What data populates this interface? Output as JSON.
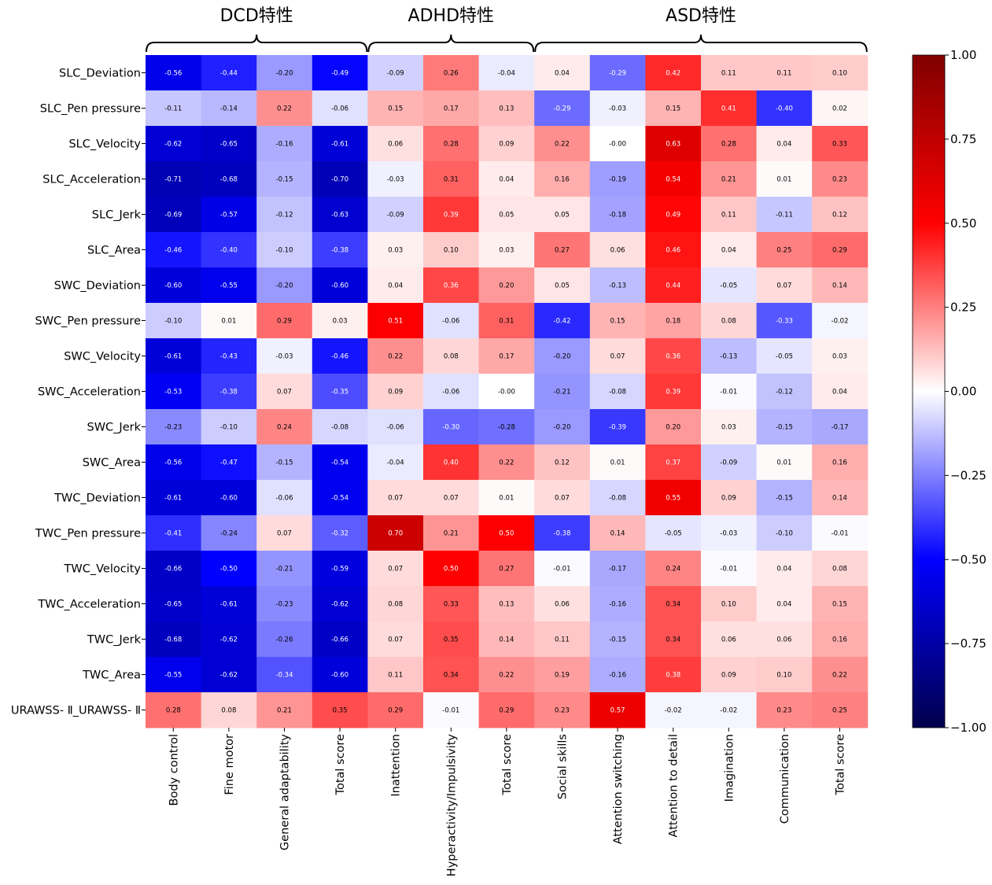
{
  "chart_data": {
    "type": "heatmap",
    "colormap": "seismic",
    "vmin": -1.0,
    "vmax": 1.0,
    "colorbar_ticks": [
      "1.00",
      "0.75",
      "0.50",
      "0.25",
      "0.00",
      "−0.25",
      "−0.50",
      "−0.75",
      "−1.00"
    ],
    "colorbar_tick_values": [
      1.0,
      0.75,
      0.5,
      0.25,
      0.0,
      -0.25,
      -0.5,
      -0.75,
      -1.0
    ],
    "groups": [
      {
        "label": "DCD特性",
        "start": 0,
        "end": 3
      },
      {
        "label": "ADHD特性",
        "start": 4,
        "end": 6
      },
      {
        "label": "ASD特性",
        "start": 7,
        "end": 12
      }
    ],
    "columns": [
      "Body control",
      "Fine motor",
      "General adaptability",
      "Total score",
      "Inattention",
      "Hyperactivity/Impulsivity",
      "Total score",
      "Social skills",
      "Attention switching",
      "Attention to detail",
      "Imagination",
      "Communication",
      "Total score"
    ],
    "rows": [
      "SLC_Deviation",
      "SLC_Pen pressure",
      "SLC_Velocity",
      "SLC_Acceleration",
      "SLC_Jerk",
      "SLC_Area",
      "SWC_Deviation",
      "SWC_Pen pressure",
      "SWC_Velocity",
      "SWC_Acceleration",
      "SWC_Jerk",
      "SWC_Area",
      "TWC_Deviation",
      "TWC_Pen pressure",
      "TWC_Velocity",
      "TWC_Acceleration",
      "TWC_Jerk",
      "TWC_Area",
      "URAWSS- Ⅱ_URAWSS- Ⅱ"
    ],
    "values": [
      [
        "-0.56",
        "-0.44",
        "-0.20",
        "-0.49",
        "-0.09",
        "0.26",
        "-0.04",
        "0.04",
        "-0.29",
        "0.42",
        "0.11",
        "0.11",
        "0.10"
      ],
      [
        "-0.11",
        "-0.14",
        "0.22",
        "-0.06",
        "0.15",
        "0.17",
        "0.13",
        "-0.29",
        "-0.03",
        "0.15",
        "0.41",
        "-0.40",
        "0.02"
      ],
      [
        "-0.62",
        "-0.65",
        "-0.16",
        "-0.61",
        "0.06",
        "0.28",
        "0.09",
        "0.22",
        "-0.00",
        "0.63",
        "0.28",
        "0.04",
        "0.33"
      ],
      [
        "-0.71",
        "-0.68",
        "-0.15",
        "-0.70",
        "-0.03",
        "0.31",
        "0.04",
        "0.16",
        "-0.19",
        "0.54",
        "0.21",
        "0.01",
        "0.23"
      ],
      [
        "-0.69",
        "-0.57",
        "-0.12",
        "-0.63",
        "-0.09",
        "0.39",
        "0.05",
        "0.05",
        "-0.18",
        "0.49",
        "0.11",
        "-0.11",
        "0.12"
      ],
      [
        "-0.46",
        "-0.40",
        "-0.10",
        "-0.38",
        "0.03",
        "0.10",
        "0.03",
        "0.27",
        "0.06",
        "0.46",
        "0.04",
        "0.25",
        "0.29"
      ],
      [
        "-0.60",
        "-0.55",
        "-0.20",
        "-0.60",
        "0.04",
        "0.36",
        "0.20",
        "0.05",
        "-0.13",
        "0.44",
        "-0.05",
        "0.07",
        "0.14"
      ],
      [
        "-0.10",
        "0.01",
        "0.29",
        "0.03",
        "0.51",
        "-0.06",
        "0.31",
        "-0.42",
        "0.15",
        "0.18",
        "0.08",
        "-0.33",
        "-0.02"
      ],
      [
        "-0.61",
        "-0.43",
        "-0.03",
        "-0.46",
        "0.22",
        "0.08",
        "0.17",
        "-0.20",
        "0.07",
        "0.36",
        "-0.13",
        "-0.05",
        "0.03"
      ],
      [
        "-0.53",
        "-0.38",
        "0.07",
        "-0.35",
        "0.09",
        "-0.06",
        "-0.00",
        "-0.21",
        "-0.08",
        "0.39",
        "-0.01",
        "-0.12",
        "0.04"
      ],
      [
        "-0.23",
        "-0.10",
        "0.24",
        "-0.08",
        "-0.06",
        "-0.30",
        "-0.28",
        "-0.20",
        "-0.39",
        "0.20",
        "0.03",
        "-0.15",
        "-0.17"
      ],
      [
        "-0.56",
        "-0.47",
        "-0.15",
        "-0.54",
        "-0.04",
        "0.40",
        "0.22",
        "0.12",
        "0.01",
        "0.37",
        "-0.09",
        "0.01",
        "0.16"
      ],
      [
        "-0.61",
        "-0.60",
        "-0.06",
        "-0.54",
        "0.07",
        "0.07",
        "0.01",
        "0.07",
        "-0.08",
        "0.55",
        "0.09",
        "-0.15",
        "0.14"
      ],
      [
        "-0.41",
        "-0.24",
        "0.07",
        "-0.32",
        "0.70",
        "0.21",
        "0.50",
        "-0.38",
        "0.14",
        "-0.05",
        "-0.03",
        "-0.10",
        "-0.01"
      ],
      [
        "-0.66",
        "-0.50",
        "-0.21",
        "-0.59",
        "0.07",
        "0.50",
        "0.27",
        "-0.01",
        "-0.17",
        "0.24",
        "-0.01",
        "0.04",
        "0.08"
      ],
      [
        "-0.65",
        "-0.61",
        "-0.23",
        "-0.62",
        "0.08",
        "0.33",
        "0.13",
        "0.06",
        "-0.16",
        "0.34",
        "0.10",
        "0.04",
        "0.15"
      ],
      [
        "-0.68",
        "-0.62",
        "-0.26",
        "-0.66",
        "0.07",
        "0.35",
        "0.14",
        "0.11",
        "-0.15",
        "0.34",
        "0.06",
        "0.06",
        "0.16"
      ],
      [
        "-0.55",
        "-0.62",
        "-0.34",
        "-0.60",
        "0.11",
        "0.34",
        "0.22",
        "0.19",
        "-0.16",
        "0.38",
        "0.09",
        "0.10",
        "0.22"
      ],
      [
        "0.28",
        "0.08",
        "0.21",
        "0.35",
        "0.29",
        "-0.01",
        "0.29",
        "0.23",
        "0.57",
        "-0.02",
        "-0.02",
        "0.23",
        "0.25"
      ]
    ]
  }
}
